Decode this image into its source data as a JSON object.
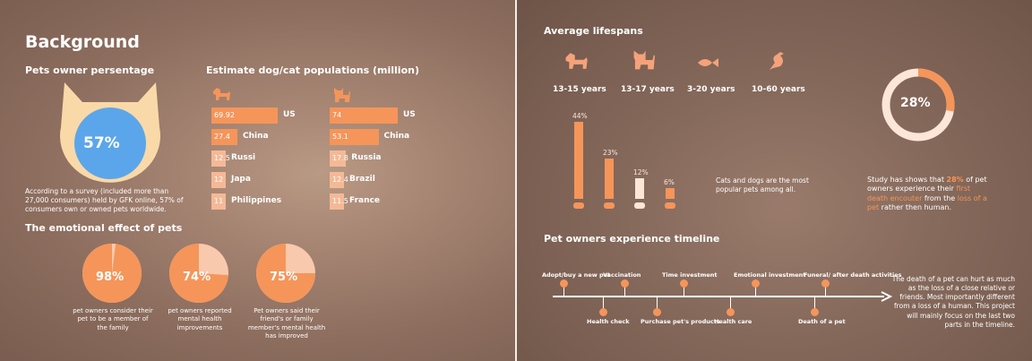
{
  "left": {
    "title": "Background",
    "owner_heading": "Pets owner persentage",
    "owner_percent": "57%",
    "survey_text": "According to a survey (included more than 27,000 consumers) held by GFK online, 57% of consumers own or owned pets worldwide.",
    "population_heading": "Estimate dog/cat populations (million)",
    "dogs": [
      {
        "value": 69.92,
        "label": "69.92",
        "country": "US"
      },
      {
        "value": 27.4,
        "label": "27.4",
        "country": "China"
      },
      {
        "value": 12.5,
        "label": "12.5",
        "country": "Russi"
      },
      {
        "value": 12,
        "label": "12",
        "country": "Japa"
      },
      {
        "value": 11,
        "label": "11",
        "country": "Philippines"
      }
    ],
    "cats": [
      {
        "value": 74,
        "label": "74",
        "country": "US"
      },
      {
        "value": 53.1,
        "label": "53.1",
        "country": "China"
      },
      {
        "value": 17.8,
        "label": "17.8",
        "country": "Russia"
      },
      {
        "value": 12.4,
        "label": "12.4",
        "country": "Brazil"
      },
      {
        "value": 11.5,
        "label": "11.5",
        "country": "France"
      }
    ],
    "emotional_heading": "The emotional effect of pets",
    "pies": [
      {
        "percent": 98,
        "label": "98%",
        "caption": "pet owners consider their pet to be a member of the family"
      },
      {
        "percent": 74,
        "label": "74%",
        "caption": "pet owners reported mental health improvements"
      },
      {
        "percent": 75,
        "label": "75%",
        "caption": "Pet owners said their friend's or family member's mental health has improved"
      }
    ]
  },
  "right": {
    "lifespan_heading": "Average lifespans",
    "lifespans": [
      {
        "icon": "dog-icon",
        "label": "13-15 years"
      },
      {
        "icon": "cat-icon",
        "label": "13-17 years"
      },
      {
        "icon": "fish-icon",
        "label": "3-20 years"
      },
      {
        "icon": "bird-icon",
        "label": "10-60 years"
      }
    ],
    "pet_share": [
      {
        "percent": 44,
        "label": "44%",
        "icon": "dog-icon"
      },
      {
        "percent": 23,
        "label": "23%",
        "icon": "cat-icon"
      },
      {
        "percent": 12,
        "label": "12%",
        "icon": "fish-icon"
      },
      {
        "percent": 6,
        "label": "6%",
        "icon": "bird-icon"
      }
    ],
    "pet_share_caption": "Cats and dogs are the most popular pets among all.",
    "ring_percent": "28%",
    "study_text_1": "Study has shows that ",
    "study_highlight_1": "28%",
    "study_text_2": " of pet owners experience their ",
    "study_highlight_2": "first death encouter",
    "study_text_3": " from the ",
    "study_highlight_3": "loss of a pet",
    "study_text_4": " rather then human.",
    "timeline_heading": "Pet owners experience timeline",
    "timeline_top": [
      "Adopt/buy a new pet",
      "Vaccination",
      "Time investment",
      "Emotional investment",
      "Funeral/ after death activities"
    ],
    "timeline_bottom": [
      "Health check",
      "Purchase pet's products",
      "Health care",
      "Death of a pet"
    ],
    "timeline_note": "The death of a pet can hurt as much as the loss of a close relative or friends. Most importantly different from a loss of a human. This project will mainly focus on the last two parts in the timeline."
  },
  "colors": {
    "accent": "#f5955a",
    "accent_light": "#fde6d8",
    "cream": "#fad9a8",
    "blue": "#5ba6ea"
  }
}
